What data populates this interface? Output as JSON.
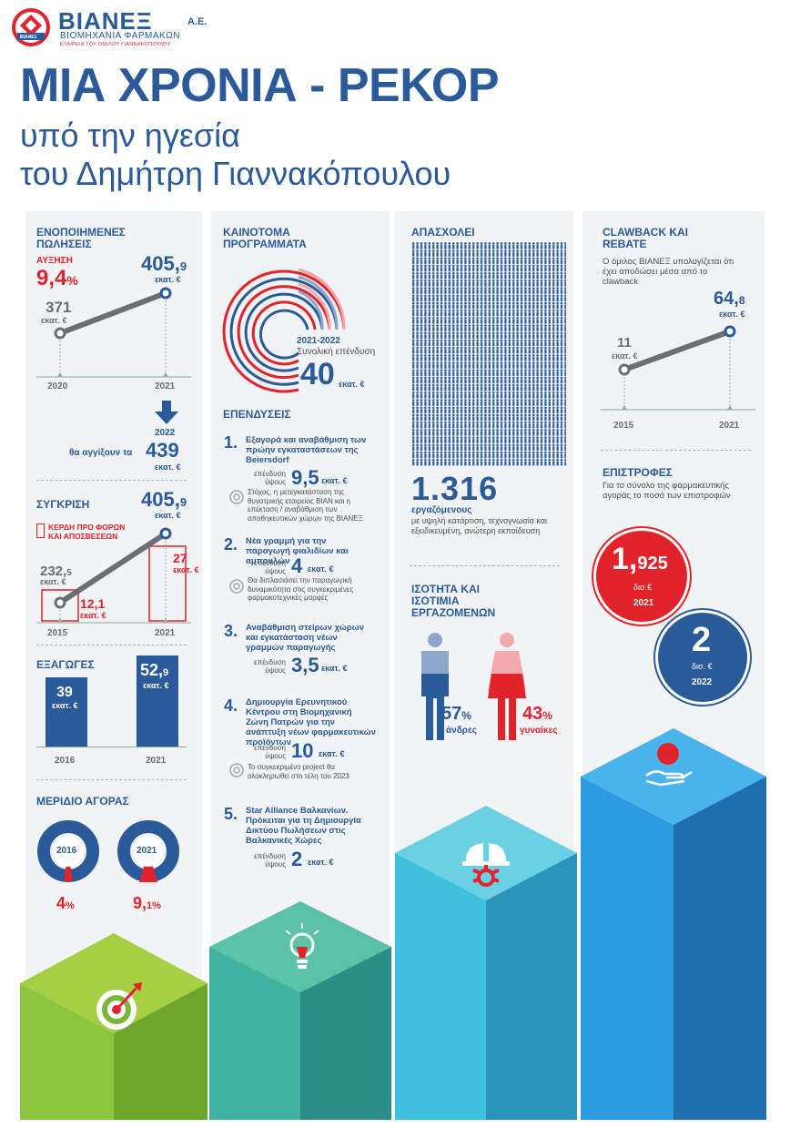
{
  "logo": {
    "name": "ΒΙΑΝΕΞ",
    "suffix": "Α.Ε.",
    "line1": "ΒΙΟΜΗΧΑΝΙΑ ΦΑΡΜΑΚΩΝ",
    "line2": "ΕΤΑΙΡΕΙΑ ΤΟΥ ΟΜΙΛΟΥ ΓΙΑΝΝΑΚΟΠΟΥΛΟΥ",
    "badge": "ΒΙΑΝΕΞ"
  },
  "title": {
    "main": "ΜΙΑ ΧΡΟΝΙΑ - ΡΕΚΟΡ",
    "sub1": "υπό την ηγεσία",
    "sub2": "του Δημήτρη Γιαννακόπουλου"
  },
  "colors": {
    "blue": "#2a5a9a",
    "red": "#e3232b",
    "green": "#8cc63f",
    "teal": "#3fb3a0",
    "cyan": "#3fc0dc",
    "sky": "#2c9be0"
  },
  "sales": {
    "heading": "ΕΝΟΠΟΙΗΜΕΝΕΣ ΠΩΛΗΣΕΙΣ",
    "increase_label": "ΑΥΞΗΣΗ",
    "increase_value": "9,4",
    "increase_unit": "%",
    "v2021_int": "405,",
    "v2021_dec": "9",
    "v2021_unit": "εκατ. €",
    "v2020": "371",
    "v2020_unit": "εκατ. €",
    "y1": "2020",
    "y2": "2021",
    "future_year": "2022",
    "future_text": "θα αγγίξουν τα",
    "future_value": "439",
    "future_unit": "εκατ. €"
  },
  "comparison": {
    "heading": "ΣΥΓΚΡΙΣΗ",
    "legend": "ΚΕΡΔΗ ΠΡΟ ΦΟΡΩΝ ΚΑΙ ΑΠΟΣΒΕΣΕΩΝ",
    "v2021_int": "405,",
    "v2021_dec": "9",
    "v2021_unit": "εκατ. €",
    "v2015_int": "232,",
    "v2015_dec": "5",
    "v2015_unit": "εκατ. €",
    "ebitda2015": "12,1",
    "ebitda2015_unit": "εκατ. €",
    "ebitda2021": "27",
    "ebitda2021_unit": "εκατ. €",
    "y1": "2015",
    "y2": "2021"
  },
  "exports": {
    "heading": "ΕΞΑΓΩΓΕΣ",
    "v2016": "39",
    "v2016_unit": "εκατ. €",
    "v2021_int": "52,",
    "v2021_dec": "9",
    "v2021_unit": "εκατ. €",
    "y1": "2016",
    "y2": "2021"
  },
  "market_share": {
    "heading": "ΜΕΡΙΔΙΟ ΑΓΟΡΑΣ",
    "y1": "2016",
    "v1": "4",
    "u1": "%",
    "y2": "2021",
    "v2_int": "9,",
    "v2_dec": "1",
    "u2": "%"
  },
  "innovation": {
    "heading": "ΚΑΙΝΟΤΟΜΑ ΠΡΟΓΡΑΜΜΑΤΑ",
    "period": "2021-2022",
    "label": "Συνολική επένδυση",
    "value": "40",
    "unit": "εκατ. €"
  },
  "investments": {
    "heading": "ΕΠΕΝΔΥΣΕΙΣ",
    "amount_label": "επένδυση ύψους",
    "items": [
      {
        "n": "1.",
        "title": "Εξαγορά και αναβάθμιση των πρώην εγκαταστάσεων της Beiersdorf",
        "value": "9,5",
        "unit": "εκατ. €",
        "note": "Στόχος, η μετεγκατάσταση της θυγατρικής εταιρείας ΒΙΑΝ και η επέκταση / αναβάθμιση των αποθηκευτικών χώρων της ΒΙΑΝΕΞ"
      },
      {
        "n": "2.",
        "title": "Νέα γραμμή για την παραγωγή φιαλιδίων και αμπουλών",
        "value": "4",
        "unit": "εκατ. €",
        "note": "Θα διπλασιάσει την παραγωγική δυναμικότητα στις συγκεκριμένες φαρμακοτεχνικές μορφές"
      },
      {
        "n": "3.",
        "title": "Αναβάθμιση στείρων χώρων και εγκατάσταση νέων γραμμών παραγωγής",
        "value": "3,5",
        "unit": "εκατ. €",
        "note": ""
      },
      {
        "n": "4.",
        "title": "Δημιουργία Ερευνητικού Κέντρου στη Βιομηχανική Ζώνη Πατρών για την ανάπτυξη νέων φαρμακευτικών προϊόντων",
        "value": "10",
        "unit": "εκατ. €",
        "note": "Το συγκεκριμένο project θα ολοκληρωθεί στο τέλη του 2023"
      },
      {
        "n": "5.",
        "title": "Star Alliance Βαλκανίων. Πρόκειται για τη Δημιουργία Δικτύου Πωλήσεων στις Βαλκανικές Χώρες",
        "value": "2",
        "unit": "εκατ. €",
        "note": ""
      }
    ]
  },
  "employees": {
    "heading": "ΑΠΑΣΧΟΛΕΙ",
    "value": "1.316",
    "label": "εργαζόμενους",
    "desc": "με υψηλή κατάρτιση, τεχνογνωσία και εξειδικευμένη, ανώτερη εκπαίδευση"
  },
  "equality": {
    "heading": "ΙΣΟΤΗΤΑ ΚΑΙ ΙΣΟΤΙΜΙΑ ΕΡΓΑΖΟΜΕΝΩΝ",
    "men_pct": "57",
    "men_unit": "%",
    "men_label": "άνδρες",
    "women_pct": "43",
    "women_unit": "%",
    "women_label": "γυναίκες"
  },
  "clawback": {
    "heading": "CLAWBACK ΚΑΙ REBATE",
    "desc": "Ο όμιλος ΒΙΑΝΕΞ υπολογίζεται ότι έχει αποδώσει μέσα από το clawback",
    "v2015": "11",
    "v2015_unit": "εκατ. €",
    "v2021_int": "64,",
    "v2021_dec": "8",
    "v2021_unit": "εκατ. €",
    "y1": "2015",
    "y2": "2021"
  },
  "returns": {
    "heading": "ΕΠΙΣΤΡΟΦΕΣ",
    "desc": "Για το σύνολο της φαρμακευτικής αγοράς το ποσό των επιστροφών",
    "v2021_int": "1,",
    "v2021_dec": "925",
    "v2021_unit": "δισ.€",
    "y2021": "2021",
    "v2022": "2",
    "v2022_unit": "δισ. €",
    "y2022": "2022"
  }
}
